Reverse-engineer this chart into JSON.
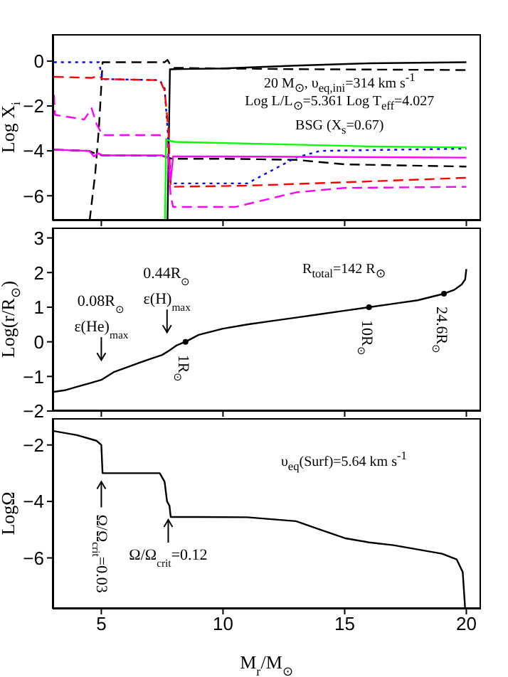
{
  "chart_data": [
    {
      "type": "line",
      "ylabel": "Log X$_{i}$",
      "xlim": [
        3,
        20.6
      ],
      "xticks": [
        5,
        10,
        15,
        20
      ],
      "ylim": [
        -7.1,
        1.2
      ],
      "yticks": [
        0,
        -2,
        -4,
        -6
      ],
      "tick_labels": "y",
      "annotations": [
        "20 M$_{⊙}$, υ$_{eq,ini}$=314 km s$^{-1}$",
        "Log L/L$_{⊙}$=5.361 Log T$_{eff}$=4.027",
        "BSG (X$_{s}$=0.67)"
      ],
      "series": [
        {
          "color": "#000000",
          "line_style": "solid",
          "x": [
            7.72,
            7.82,
            8,
            10,
            13,
            16,
            20
          ],
          "values": [
            -7.1,
            -0.37,
            -0.36,
            -0.33,
            -0.2,
            -0.1,
            -0.05
          ]
        },
        {
          "color": "#000000",
          "line_style": "dashed",
          "x": [
            4.52,
            4.75,
            4.9,
            4.98,
            5.05,
            6,
            7.6,
            7.72,
            7.85,
            8,
            10,
            13,
            20
          ],
          "values": [
            -7.1,
            -5,
            -3,
            -1.5,
            -0.05,
            -0.05,
            -0.05,
            0.05,
            -0.2,
            -0.3,
            -0.33,
            -0.36,
            -0.4
          ]
        },
        {
          "color": "#000000",
          "line_style": "dashed",
          "x": [
            3.05,
            4.5,
            4.8,
            5.05,
            7.5,
            7.9,
            10,
            13,
            15,
            20
          ],
          "values": [
            -3.95,
            -4.0,
            -4.15,
            -4.2,
            -4.22,
            -4.35,
            -4.35,
            -4.4,
            -4.6,
            -4.7
          ]
        },
        {
          "color": "#0000ff",
          "line_style": "dotted",
          "x": [
            3.05,
            4.9,
            5.05,
            7.4,
            7.6,
            7.75,
            7.85,
            9.5,
            11,
            13,
            14,
            20
          ],
          "values": [
            -0.05,
            -0.05,
            -0.8,
            -0.85,
            -1.2,
            -3.5,
            -5.45,
            -5.45,
            -5.45,
            -4.3,
            -4.0,
            -3.9
          ]
        },
        {
          "color": "#ff0000",
          "line_style": "dashed",
          "x": [
            3.05,
            4.6,
            4.9,
            5.05,
            7.4,
            7.6,
            7.75,
            7.85,
            11,
            15,
            20
          ],
          "values": [
            -0.7,
            -0.75,
            -0.65,
            -0.8,
            -0.85,
            -1.3,
            -3,
            -5.6,
            -5.55,
            -5.4,
            -5.2
          ]
        },
        {
          "color": "#ff00ff",
          "line_style": "dashed",
          "x": [
            3.05,
            3.1,
            4.3,
            4.6,
            4.8,
            5.05,
            7.4,
            7.7,
            7.85,
            7.95,
            10.5,
            13,
            15,
            20
          ],
          "values": [
            -1.5,
            -2.4,
            -2.6,
            -2.1,
            -2.8,
            -3.3,
            -3.3,
            -3.5,
            -6.0,
            -6.5,
            -6.5,
            -5.85,
            -5.65,
            -5.6
          ]
        },
        {
          "color": "#ff00ff",
          "line_style": "solid",
          "x": [
            3.05,
            4.5,
            4.7,
            4.85,
            5.05,
            7.5,
            7.75,
            7.85,
            7.95,
            10,
            20
          ],
          "values": [
            -3.95,
            -4.0,
            -4.25,
            -4.1,
            -4.2,
            -4.2,
            -4.3,
            -5.3,
            -4.25,
            -4.25,
            -4.3
          ]
        },
        {
          "color": "#00ff00",
          "line_style": "solid",
          "x": [
            7.62,
            7.66,
            8,
            12,
            16,
            20
          ],
          "values": [
            -7.1,
            -3.5,
            -3.6,
            -3.7,
            -3.8,
            -3.85
          ]
        }
      ]
    },
    {
      "type": "line",
      "ylabel": "Log(r/R$_{⊙}$)",
      "xlim": [
        3,
        20.6
      ],
      "xticks": [
        5,
        10,
        15,
        20
      ],
      "ylim": [
        -2,
        3.3
      ],
      "yticks": [
        -2,
        -1,
        0,
        1,
        2,
        3
      ],
      "tick_labels": "y",
      "annotations": [
        "R$_{total}$=142 R$_{⊙}$",
        {
          "text": "0.08R$_{⊙}$\nε(He)$_{max}$",
          "x": 5.0,
          "y": -1.1
        },
        {
          "text": "0.44R$_{⊙}$\nε(H)$_{max}$",
          "x": 7.7,
          "y": -0.3
        },
        {
          "text": "1R$_{⊙}$",
          "x": 8.46,
          "y": 0
        },
        {
          "text": "10R$_{⊙}$",
          "x": 16.0,
          "y": 1.0
        },
        {
          "text": "24.6R$_{⊙}$",
          "x": 19.08,
          "y": 1.39
        }
      ],
      "series": [
        {
          "color": "#000000",
          "line_style": "solid",
          "x": [
            3,
            3.5,
            4,
            4.5,
            5,
            5.5,
            6,
            6.5,
            7,
            7.5,
            7.8,
            8.1,
            8.46,
            9,
            10,
            11,
            12,
            13,
            14,
            15,
            16,
            17,
            18,
            19.08,
            19.5,
            19.8,
            19.95,
            20
          ],
          "values": [
            -1.45,
            -1.4,
            -1.3,
            -1.2,
            -1.1,
            -0.88,
            -0.75,
            -0.62,
            -0.5,
            -0.38,
            -0.25,
            -0.1,
            0,
            0.2,
            0.38,
            0.5,
            0.6,
            0.7,
            0.8,
            0.9,
            1.0,
            1.1,
            1.2,
            1.39,
            1.5,
            1.65,
            1.8,
            2.1
          ]
        },
        {
          "type": "scatter",
          "color": "#000000",
          "marker": "circle",
          "x": [
            8.46,
            16.0,
            19.08
          ],
          "values": [
            0,
            1.0,
            1.39
          ]
        }
      ]
    },
    {
      "type": "line",
      "ylabel": "LogΩ",
      "xlabel": "M$_{r}$/M$_{⊙}$",
      "xlim": [
        3,
        20.6
      ],
      "xticks": [
        5,
        10,
        15,
        20
      ],
      "ylim": [
        -7.8,
        -1.05
      ],
      "yticks": [
        -2,
        -4,
        -6
      ],
      "annotations": [
        "υ$_{eq}$(Surf)=5.64 km s$^{-1}$",
        {
          "text": "Ω/Ω$_{crit}$=0.03",
          "x": 5.0,
          "y": -3.0
        },
        {
          "text": "Ω/Ω$_{crit}$=0.12",
          "x": 7.75,
          "y": -4.55
        }
      ],
      "series": [
        {
          "color": "#000000",
          "line_style": "solid",
          "x": [
            3,
            4,
            4.8,
            5.0,
            5.05,
            7.4,
            7.6,
            7.7,
            7.8,
            7.85,
            9,
            11,
            13,
            14,
            15,
            16,
            17,
            18,
            19,
            19.6,
            19.85,
            19.95
          ],
          "values": [
            -1.5,
            -1.65,
            -1.85,
            -2.0,
            -3.0,
            -3.0,
            -3.3,
            -4.0,
            -4.15,
            -4.55,
            -4.55,
            -4.56,
            -4.7,
            -5.0,
            -5.3,
            -5.45,
            -5.55,
            -5.7,
            -5.85,
            -6.05,
            -6.5,
            -7.8
          ]
        }
      ]
    }
  ]
}
